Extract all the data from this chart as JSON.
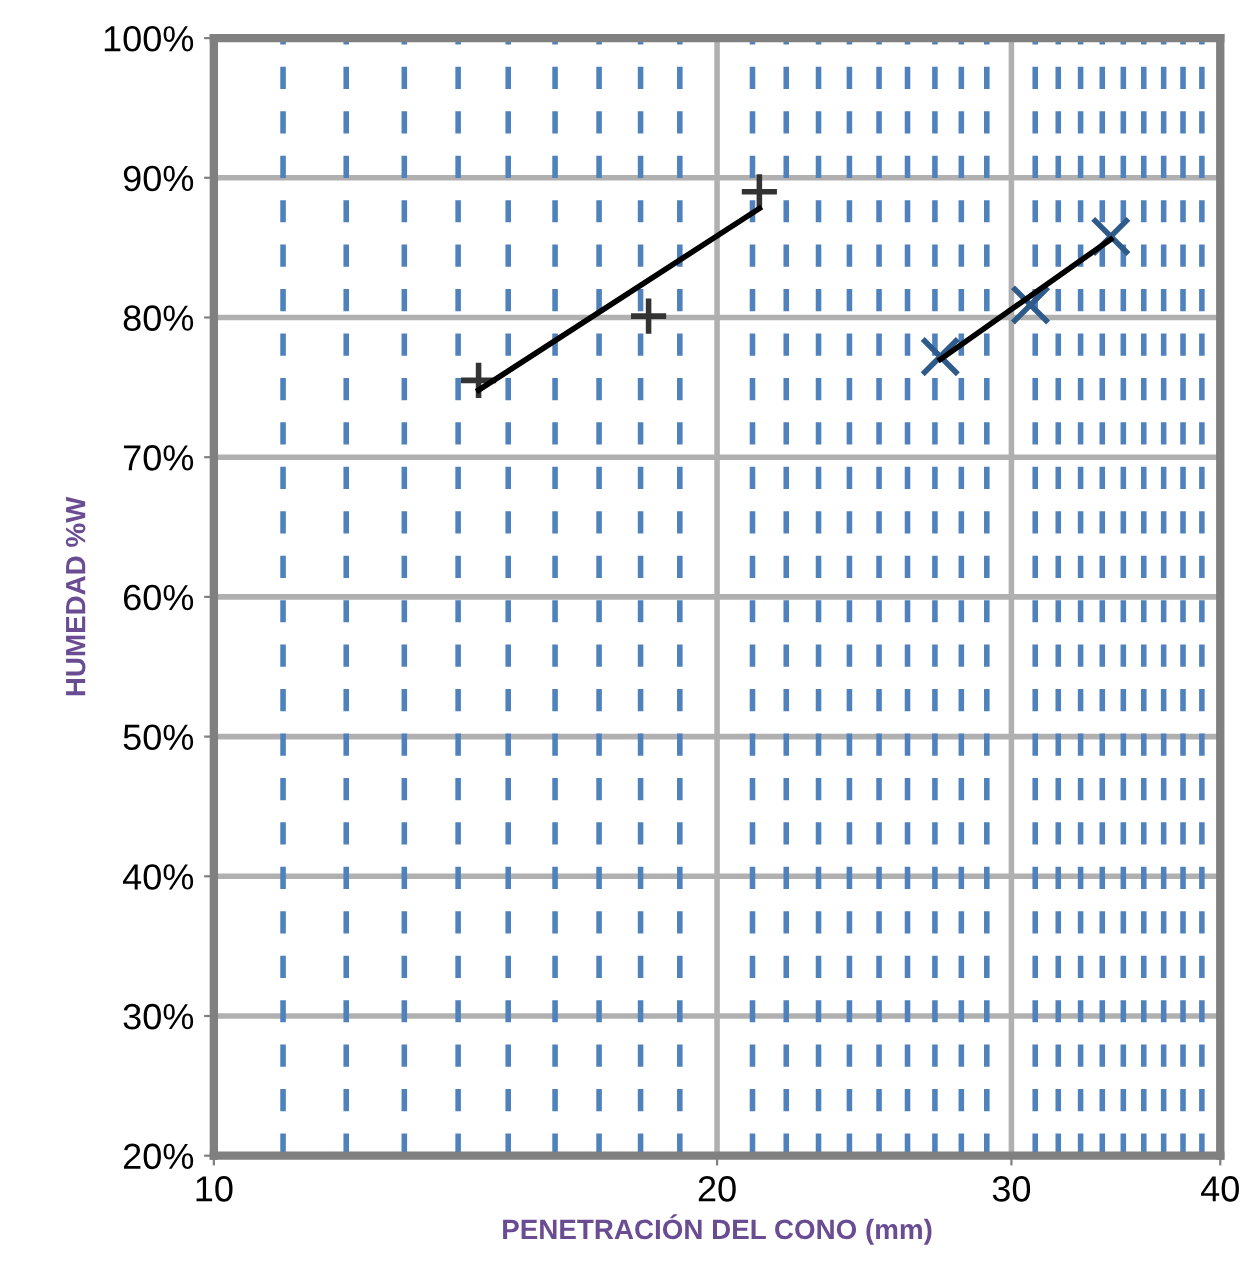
{
  "chart_data": {
    "type": "scatter",
    "xlabel": "PENETRACIÓN DEL CONO (mm)",
    "ylabel": "HUMEDAD %W",
    "log": "x",
    "xlim": [
      10,
      40
    ],
    "xticks": [
      10,
      20,
      30,
      40
    ],
    "ylim": [
      20,
      100
    ],
    "yticks": [
      {
        "value": 20,
        "label": "20%"
      },
      {
        "value": 30,
        "label": "30%"
      },
      {
        "value": 40,
        "label": "40%"
      },
      {
        "value": 50,
        "label": "50%"
      },
      {
        "value": 60,
        "label": "60%"
      },
      {
        "value": 70,
        "label": "70%"
      },
      {
        "value": 80,
        "label": "80%"
      },
      {
        "value": 90,
        "label": "90%"
      },
      {
        "value": 100,
        "label": "100%"
      }
    ],
    "grid": true,
    "legend": false,
    "ref_lines": [
      {
        "axis": "x",
        "value": 11,
        "color": "#4f81bd",
        "line_style": "dashed"
      },
      {
        "axis": "x",
        "value": 12,
        "color": "#4f81bd",
        "line_style": "dashed"
      },
      {
        "axis": "x",
        "value": 13,
        "color": "#4f81bd",
        "line_style": "dashed"
      },
      {
        "axis": "x",
        "value": 14,
        "color": "#4f81bd",
        "line_style": "dashed"
      },
      {
        "axis": "x",
        "value": 15,
        "color": "#4f81bd",
        "line_style": "dashed"
      },
      {
        "axis": "x",
        "value": 16,
        "color": "#4f81bd",
        "line_style": "dashed"
      },
      {
        "axis": "x",
        "value": 17,
        "color": "#4f81bd",
        "line_style": "dashed"
      },
      {
        "axis": "x",
        "value": 18,
        "color": "#4f81bd",
        "line_style": "dashed"
      },
      {
        "axis": "x",
        "value": 19,
        "color": "#4f81bd",
        "line_style": "dashed"
      },
      {
        "axis": "x",
        "value": 21,
        "color": "#4f81bd",
        "line_style": "dashed"
      },
      {
        "axis": "x",
        "value": 22,
        "color": "#4f81bd",
        "line_style": "dashed"
      },
      {
        "axis": "x",
        "value": 23,
        "color": "#4f81bd",
        "line_style": "dashed"
      },
      {
        "axis": "x",
        "value": 24,
        "color": "#4f81bd",
        "line_style": "dashed"
      },
      {
        "axis": "x",
        "value": 25,
        "color": "#4f81bd",
        "line_style": "dashed"
      },
      {
        "axis": "x",
        "value": 26,
        "color": "#4f81bd",
        "line_style": "dashed"
      },
      {
        "axis": "x",
        "value": 27,
        "color": "#4f81bd",
        "line_style": "dashed"
      },
      {
        "axis": "x",
        "value": 28,
        "color": "#4f81bd",
        "line_style": "dashed"
      },
      {
        "axis": "x",
        "value": 29,
        "color": "#4f81bd",
        "line_style": "dashed"
      },
      {
        "axis": "x",
        "value": 31,
        "color": "#4f81bd",
        "line_style": "dashed"
      },
      {
        "axis": "x",
        "value": 32,
        "color": "#4f81bd",
        "line_style": "dashed"
      },
      {
        "axis": "x",
        "value": 33,
        "color": "#4f81bd",
        "line_style": "dashed"
      },
      {
        "axis": "x",
        "value": 34,
        "color": "#4f81bd",
        "line_style": "dashed"
      },
      {
        "axis": "x",
        "value": 35,
        "color": "#4f81bd",
        "line_style": "dashed"
      },
      {
        "axis": "x",
        "value": 36,
        "color": "#4f81bd",
        "line_style": "dashed"
      },
      {
        "axis": "x",
        "value": 37,
        "color": "#4f81bd",
        "line_style": "dashed"
      },
      {
        "axis": "x",
        "value": 38,
        "color": "#4f81bd",
        "line_style": "dashed"
      },
      {
        "axis": "x",
        "value": 39,
        "color": "#4f81bd",
        "line_style": "dashed"
      }
    ],
    "series": [
      {
        "marker": "plus",
        "color": "#333333",
        "x": [
          14.4,
          18.2,
          21.2
        ],
        "values": [
          75.5,
          80.1,
          89.0
        ]
      },
      {
        "marker": "cross",
        "color": "#2e5b8a",
        "x": [
          27.2,
          30.8,
          34.4
        ],
        "values": [
          77.2,
          80.9,
          85.8
        ]
      },
      {
        "type": "line",
        "marker": "none",
        "color": "#000000",
        "x": [
          14.4,
          21.2
        ],
        "values": [
          74.8,
          87.8
        ]
      },
      {
        "type": "line",
        "marker": "none",
        "color": "#000000",
        "x": [
          27.2,
          34.4
        ],
        "values": [
          77.0,
          85.6
        ]
      }
    ]
  }
}
